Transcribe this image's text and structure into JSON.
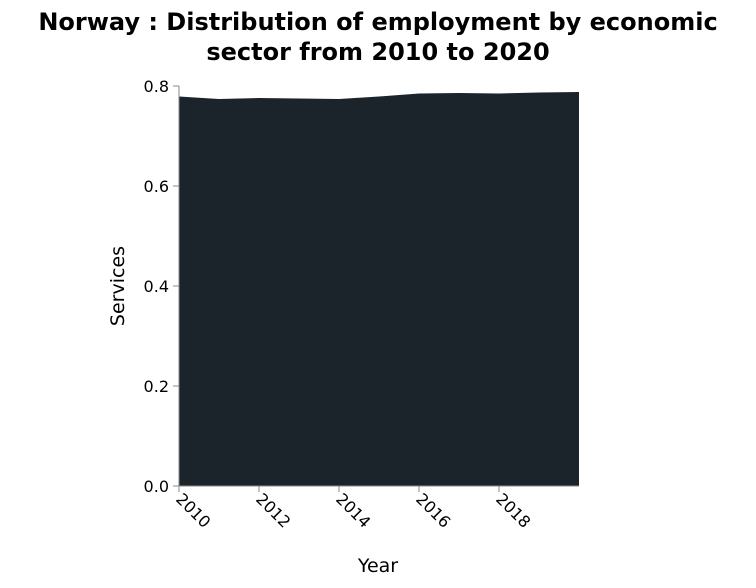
{
  "chart_data": {
    "type": "area",
    "title": "Norway : Distribution of employment by economic sector from 2010 to 2020",
    "title_lines": [
      "Norway : Distribution of employment by economic",
      "sector from 2010 to 2020"
    ],
    "xlabel": "Year",
    "ylabel": "Services",
    "x": [
      2010,
      2011,
      2012,
      2013,
      2014,
      2015,
      2016,
      2017,
      2018,
      2019,
      2020
    ],
    "series": [
      {
        "values": [
          0.779,
          0.774,
          0.776,
          0.775,
          0.774,
          0.779,
          0.785,
          0.786,
          0.785,
          0.787,
          0.788
        ]
      }
    ],
    "xlim": [
      2010,
      2020
    ],
    "ylim": [
      0,
      0.8
    ],
    "x_ticks": [
      "2010",
      "2012",
      "2014",
      "2016",
      "2018"
    ],
    "y_ticks": [
      "0.0",
      "0.2",
      "0.4",
      "0.6",
      "0.8"
    ],
    "grid": false,
    "area_color": "#1c242b"
  }
}
